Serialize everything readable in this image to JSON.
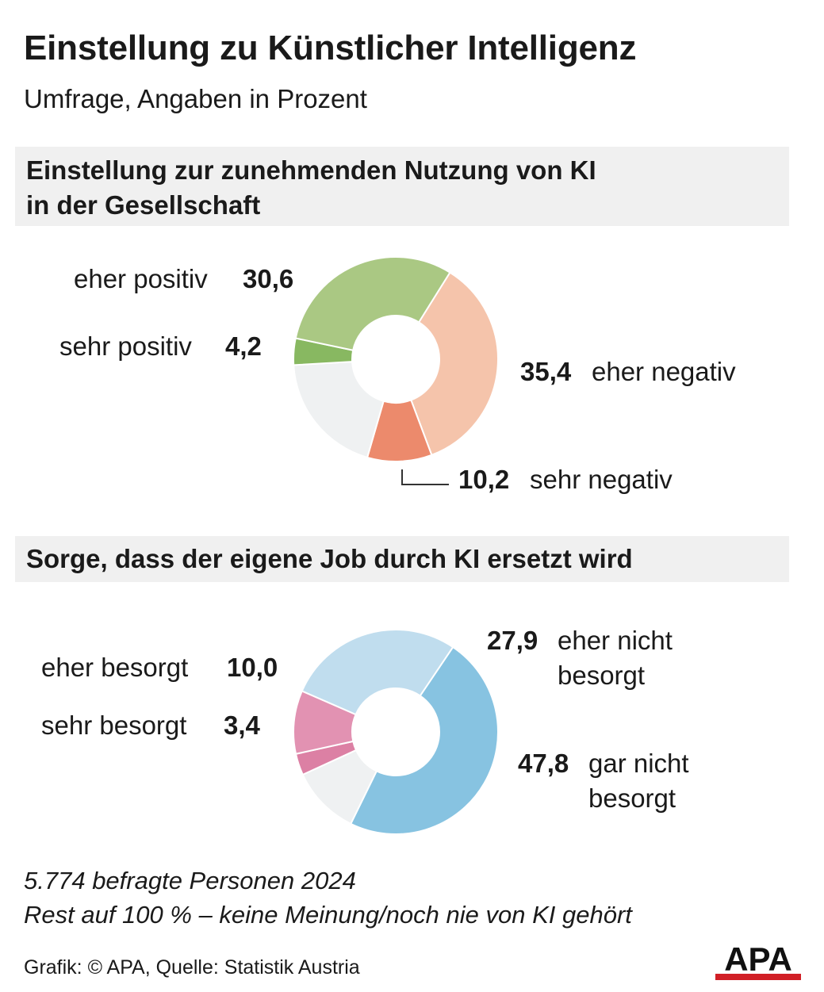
{
  "header": {
    "title": "Einstellung zu Künstlicher Intelligenz",
    "subtitle": "Umfrage, Angaben in Prozent"
  },
  "chart_data": [
    {
      "type": "pie",
      "title": "Einstellung zur zunehmenden Nutzung von KI in der Gesellschaft",
      "title_lines": [
        "Einstellung zur zunehmenden Nutzung von KI",
        "in der Gesellschaft"
      ],
      "donut": true,
      "slices": [
        {
          "label": "eher negativ",
          "value": 35.4,
          "value_text": "35,4",
          "color": "#f5c4ab"
        },
        {
          "label": "sehr negativ",
          "value": 10.2,
          "value_text": "10,2",
          "color": "#ec8a6c"
        },
        {
          "label": "",
          "value": 19.6,
          "value_text": "",
          "color": "#eff1f2"
        },
        {
          "label": "sehr positiv",
          "value": 4.2,
          "value_text": "4,2",
          "color": "#88b861"
        },
        {
          "label": "eher positiv",
          "value": 30.6,
          "value_text": "30,6",
          "color": "#aac883"
        }
      ]
    },
    {
      "type": "pie",
      "title": "Sorge, dass der eigene Job durch KI ersetzt wird",
      "title_lines": [
        "Sorge, dass der eigene Job durch KI ersetzt wird"
      ],
      "donut": true,
      "slices": [
        {
          "label": "gar nicht besorgt",
          "label_lines": [
            "gar nicht",
            "besorgt"
          ],
          "value": 47.8,
          "value_text": "47,8",
          "color": "#87c3e1"
        },
        {
          "label": "",
          "value": 10.9,
          "value_text": "",
          "color": "#eff1f2"
        },
        {
          "label": "sehr besorgt",
          "value": 3.4,
          "value_text": "3,4",
          "color": "#dc80a4"
        },
        {
          "label": "eher besorgt",
          "value": 10.0,
          "value_text": "10,0",
          "color": "#e292b2"
        },
        {
          "label": "eher nicht besorgt",
          "label_lines": [
            "eher nicht",
            "besorgt"
          ],
          "value": 27.9,
          "value_text": "27,9",
          "color": "#c0ddee"
        }
      ]
    }
  ],
  "footer": {
    "note1": "5.774 befragte Personen 2024",
    "note2": "Rest auf 100 % – keine Meinung/noch nie von KI gehört",
    "source": "Grafik: © APA, Quelle: Statistik Austria",
    "logo_text": "APA",
    "logo_color": "#d11f26"
  }
}
